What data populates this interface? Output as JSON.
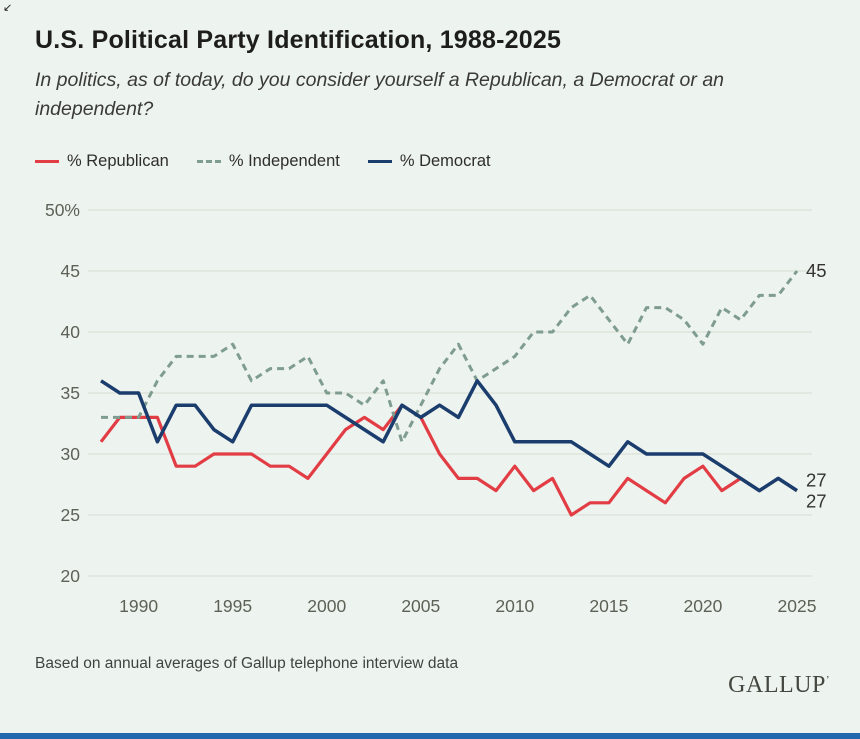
{
  "title": "U.S. Political Party Identification, 1988-2025",
  "subtitle": "In politics, as of today, do you consider yourself a Republican, a Democrat or an independent?",
  "legend": {
    "items": [
      {
        "label": "% Republican",
        "color": "#e23d45",
        "style": "solid"
      },
      {
        "label": "% Independent",
        "color": "#7f9c90",
        "style": "dashed"
      },
      {
        "label": "% Democrat",
        "color": "#1b3d6d",
        "style": "solid"
      }
    ]
  },
  "footer_note": "Based on annual averages of Gallup telephone interview data",
  "logo_text": "GALLUP",
  "theme": {
    "background": "#edf3ee",
    "gridline": "#dce2d8",
    "axis_text": "#5d6156",
    "end_label_text": "#333333",
    "accent_bar": "#2167ae"
  },
  "chart_data": {
    "type": "line",
    "title": "U.S. Political Party Identification, 1988-2025",
    "xlabel": "",
    "ylabel": "",
    "grid": true,
    "legend_position": "top",
    "ylim": [
      20,
      50
    ],
    "yticks": [
      20,
      25,
      30,
      35,
      40,
      45,
      50
    ],
    "ytick_labels": [
      "20",
      "25",
      "30",
      "35",
      "40",
      "45",
      "50%"
    ],
    "xticks": [
      1990,
      1995,
      2000,
      2005,
      2010,
      2015,
      2020,
      2025
    ],
    "x": [
      1988,
      1989,
      1990,
      1991,
      1992,
      1993,
      1994,
      1995,
      1996,
      1997,
      1998,
      1999,
      2000,
      2001,
      2002,
      2003,
      2004,
      2005,
      2006,
      2007,
      2008,
      2009,
      2010,
      2011,
      2012,
      2013,
      2014,
      2015,
      2016,
      2017,
      2018,
      2019,
      2020,
      2021,
      2022,
      2023,
      2024,
      2025
    ],
    "series": [
      {
        "name": "% Republican",
        "key": "republican",
        "color": "#e23d45",
        "dash": false,
        "width": 3.2,
        "end_label": "27",
        "end_label_offset": 17,
        "values": [
          31,
          33,
          33,
          33,
          29,
          29,
          30,
          30,
          30,
          29,
          29,
          28,
          30,
          32,
          33,
          32,
          34,
          33,
          30,
          28,
          28,
          27,
          29,
          27,
          28,
          25,
          26,
          26,
          28,
          27,
          26,
          28,
          29,
          27,
          28,
          27,
          28,
          27
        ]
      },
      {
        "name": "% Independent",
        "key": "independent",
        "color": "#7f9c90",
        "dash": true,
        "width": 3,
        "end_label": "45",
        "end_label_offset": 6,
        "values": [
          33,
          33,
          33,
          36,
          38,
          38,
          38,
          39,
          36,
          37,
          37,
          38,
          35,
          35,
          34,
          36,
          31,
          34,
          37,
          39,
          36,
          37,
          38,
          40,
          40,
          42,
          43,
          41,
          39,
          42,
          42,
          41,
          39,
          42,
          41,
          43,
          43,
          45
        ]
      },
      {
        "name": "% Democrat",
        "key": "democrat",
        "color": "#1b3d6d",
        "dash": false,
        "width": 3.5,
        "end_label": "27",
        "end_label_offset": -4,
        "values": [
          36,
          35,
          35,
          31,
          34,
          34,
          32,
          31,
          34,
          34,
          34,
          34,
          34,
          33,
          32,
          31,
          34,
          33,
          34,
          33,
          36,
          34,
          31,
          31,
          31,
          31,
          30,
          29,
          31,
          30,
          30,
          30,
          30,
          29,
          28,
          27,
          28,
          27
        ]
      }
    ]
  }
}
